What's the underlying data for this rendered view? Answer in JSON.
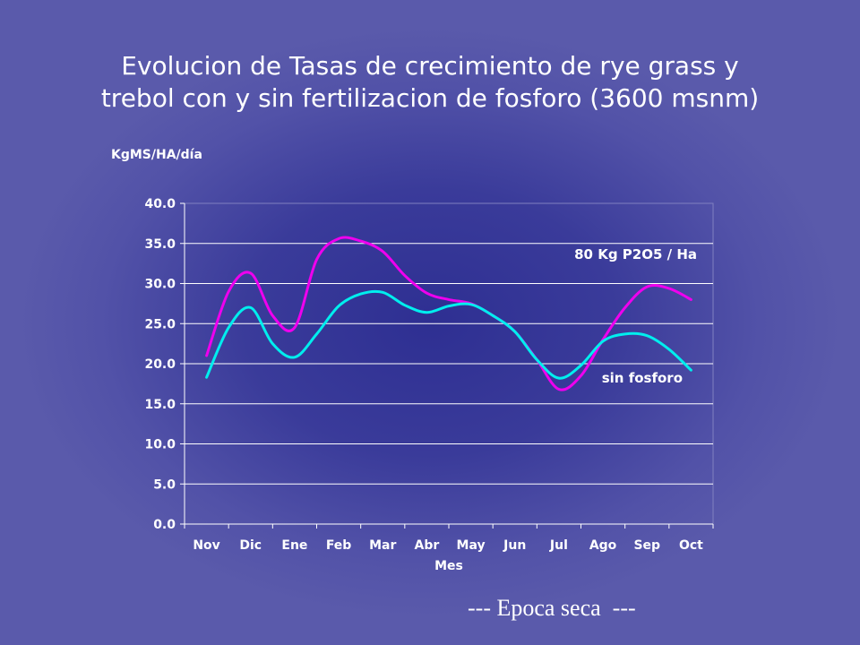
{
  "title_line1": "Evolucion de Tasas de crecimiento de rye grass y",
  "title_line2": "trebol con y sin fertilizacion de fosforo (3600 msnm)",
  "footer_note": "--- Epoca seca  ---",
  "chart_data": {
    "type": "line",
    "title": "Evolucion de Tasas de crecimiento de rye grass y trebol con y sin fertilizacion de fosforo (3600 msnm)",
    "xlabel": "Mes",
    "ylabel": "KgMS/HA/día",
    "ylim": [
      0,
      40
    ],
    "yticks": [
      "0.0",
      "5.0",
      "10.0",
      "15.0",
      "20.0",
      "25.0",
      "30.0",
      "35.0",
      "40.0"
    ],
    "categories": [
      "Nov",
      "Dic",
      "Ene",
      "Feb",
      "Mar",
      "Abr",
      "May",
      "Jun",
      "Jul",
      "Ago",
      "Sep",
      "Oct"
    ],
    "grid": true,
    "series": [
      {
        "name": "80 Kg P2O5 / Ha",
        "color": "#ee00ee",
        "x": [
          0,
          0.5,
          1,
          1.5,
          2,
          2.5,
          3,
          3.5,
          4,
          4.5,
          5,
          5.5,
          6,
          6.5,
          7,
          7.5,
          8,
          8.5,
          9,
          9.5,
          10,
          10.5,
          11
        ],
        "values": [
          21,
          29,
          31.3,
          26,
          24.5,
          33,
          35.6,
          35.3,
          34,
          31,
          28.8,
          28,
          27.5,
          26,
          24,
          20.5,
          16.8,
          18.5,
          23,
          27,
          29.6,
          29.4,
          28
        ]
      },
      {
        "name": "sin fosforo",
        "color": "#00eeee",
        "x": [
          0,
          0.5,
          1,
          1.5,
          2,
          2.5,
          3,
          3.5,
          4,
          4.5,
          5,
          5.5,
          6,
          6.5,
          7,
          7.5,
          8,
          8.5,
          9,
          9.5,
          10,
          10.5,
          11
        ],
        "values": [
          18.3,
          24.5,
          27,
          22.5,
          20.8,
          23.7,
          27.2,
          28.7,
          28.9,
          27.3,
          26.4,
          27.2,
          27.4,
          26,
          24,
          20.5,
          18.2,
          19.8,
          22.8,
          23.7,
          23.5,
          21.8,
          19.2
        ]
      }
    ],
    "annotations": [
      {
        "text": "80 Kg P2O5 / Ha",
        "series": "80 Kg P2O5 / Ha"
      },
      {
        "text": "sin fosforo",
        "series": "sin fosforo"
      }
    ]
  }
}
